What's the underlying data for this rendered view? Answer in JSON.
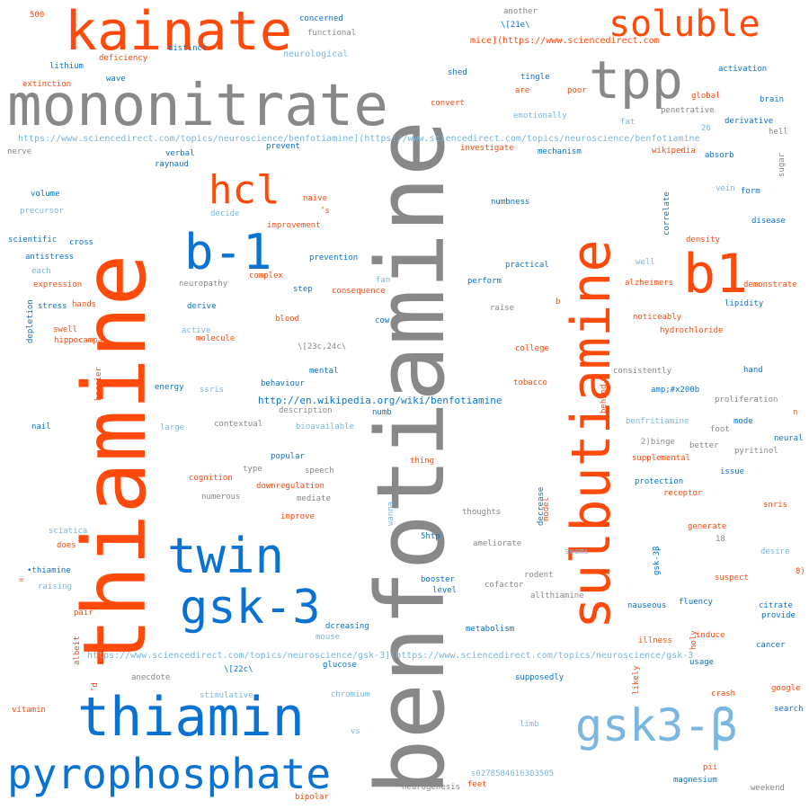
{
  "palette": {
    "orange": "#ff4a0c",
    "gray": "#888888",
    "blue": "#0a72d2",
    "lightblue": "#7ab6e0"
  },
  "words": [
    {
      "text": "benfotiamine",
      "color": "gray"
    },
    {
      "text": "thiamine",
      "color": "orange"
    },
    {
      "text": "mononitrate",
      "color": "gray"
    },
    {
      "text": "sulbutiamine",
      "color": "orange"
    },
    {
      "text": "kainate",
      "color": "orange"
    },
    {
      "text": "thiamin",
      "color": "blue"
    },
    {
      "text": "pyrophosphate",
      "color": "blue"
    },
    {
      "text": "gsk3-β",
      "color": "lightblue"
    },
    {
      "text": "gsk-3",
      "color": "blue"
    },
    {
      "text": "twin",
      "color": "blue"
    },
    {
      "text": "tpp",
      "color": "gray"
    },
    {
      "text": "soluble",
      "color": "orange"
    },
    {
      "text": "b-1",
      "color": "blue"
    },
    {
      "text": "b1",
      "color": "orange"
    },
    {
      "text": "hcl",
      "color": "orange"
    },
    {
      "text": "https://www.sciencedirect.com/topics/neuroscience/benfotiamine](https://www.sciencedirect.com/topics/neuroscience/benfotiamine",
      "color": "lightblue"
    },
    {
      "text": "https://www.sciencedirect.com/topics/neuroscience/gsk-3](https://www.sciencedirect.com/topics/neuroscience/gsk-3",
      "color": "lightblue"
    },
    {
      "text": "http://en.wikipedia.org/wiki/benfotiamine",
      "color": "blue"
    },
    {
      "text": "mice](https://www.sciencedirect.com",
      "color": "orange"
    },
    {
      "text": "500",
      "color": "orange"
    },
    {
      "text": "concerned",
      "color": "blue"
    },
    {
      "text": "functional",
      "color": "gray"
    },
    {
      "text": "distinct",
      "color": "blue"
    },
    {
      "text": "deficiency",
      "color": "orange"
    },
    {
      "text": "neurological",
      "color": "lightblue"
    },
    {
      "text": "lithium",
      "color": "blue"
    },
    {
      "text": "extinction",
      "color": "orange"
    },
    {
      "text": "wave",
      "color": "blue"
    },
    {
      "text": "nerve",
      "color": "gray"
    },
    {
      "text": "verbal",
      "color": "blue"
    },
    {
      "text": "raynaud",
      "color": "blue"
    },
    {
      "text": "prevent",
      "color": "blue"
    },
    {
      "text": "volume",
      "color": "blue"
    },
    {
      "text": "precursor",
      "color": "lightblue"
    },
    {
      "text": "scientific",
      "color": "blue"
    },
    {
      "text": "cross",
      "color": "blue"
    },
    {
      "text": "antistress",
      "color": "blue"
    },
    {
      "text": "each",
      "color": "lightblue"
    },
    {
      "text": "expression",
      "color": "orange"
    },
    {
      "text": "stress",
      "color": "blue"
    },
    {
      "text": "hands",
      "color": "orange"
    },
    {
      "text": "depletion",
      "color": "blue",
      "rot": true
    },
    {
      "text": "swell",
      "color": "orange"
    },
    {
      "text": "hippocampal",
      "color": "orange"
    },
    {
      "text": "barrier",
      "color": "orange",
      "rot": true
    },
    {
      "text": "energy",
      "color": "blue"
    },
    {
      "text": "ssris",
      "color": "lightblue"
    },
    {
      "text": "nail",
      "color": "blue"
    },
    {
      "text": "large",
      "color": "lightblue"
    },
    {
      "text": "another",
      "color": "gray"
    },
    {
      "text": "\\[21e\\",
      "color": "blue"
    },
    {
      "text": "shed",
      "color": "blue"
    },
    {
      "text": "tingle",
      "color": "blue"
    },
    {
      "text": "are",
      "color": "orange"
    },
    {
      "text": "poor",
      "color": "orange"
    },
    {
      "text": "convert",
      "color": "orange"
    },
    {
      "text": "emotionally",
      "color": "lightblue"
    },
    {
      "text": "fat",
      "color": "lightblue"
    },
    {
      "text": "investigate",
      "color": "orange"
    },
    {
      "text": "mechanism",
      "color": "blue"
    },
    {
      "text": "activation",
      "color": "blue"
    },
    {
      "text": "brain",
      "color": "blue"
    },
    {
      "text": "global",
      "color": "orange"
    },
    {
      "text": "penetrative",
      "color": "gray"
    },
    {
      "text": "derivative",
      "color": "blue"
    },
    {
      "text": "26",
      "color": "lightblue"
    },
    {
      "text": "hell",
      "color": "gray"
    },
    {
      "text": "wikipedia",
      "color": "orange"
    },
    {
      "text": "absorb",
      "color": "blue"
    },
    {
      "text": "sugar",
      "color": "gray",
      "rot": true
    },
    {
      "text": "vein",
      "color": "lightblue"
    },
    {
      "text": "form",
      "color": "blue"
    },
    {
      "text": "correlate",
      "color": "blue",
      "rot": true
    },
    {
      "text": "disease",
      "color": "blue"
    },
    {
      "text": "numbness",
      "color": "blue"
    },
    {
      "text": "density",
      "color": "orange"
    },
    {
      "text": "naive",
      "color": "orange"
    },
    {
      "text": "’s",
      "color": "orange"
    },
    {
      "text": "decide",
      "color": "lightblue"
    },
    {
      "text": "improvement",
      "color": "orange"
    },
    {
      "text": "prevention",
      "color": "blue"
    },
    {
      "text": "practical",
      "color": "blue"
    },
    {
      "text": "well",
      "color": "lightblue"
    },
    {
      "text": "complex",
      "color": "orange"
    },
    {
      "text": "neuropathy",
      "color": "gray"
    },
    {
      "text": "fan",
      "color": "lightblue"
    },
    {
      "text": "perform",
      "color": "blue"
    },
    {
      "text": "alzheimers",
      "color": "orange"
    },
    {
      "text": "demonstrate",
      "color": "orange"
    },
    {
      "text": "step",
      "color": "blue"
    },
    {
      "text": "consequence",
      "color": "orange"
    },
    {
      "text": "lipidity",
      "color": "blue"
    },
    {
      "text": "derive",
      "color": "blue"
    },
    {
      "text": "raise",
      "color": "gray"
    },
    {
      "text": "b",
      "color": "orange"
    },
    {
      "text": "cow",
      "color": "blue"
    },
    {
      "text": "blood",
      "color": "orange"
    },
    {
      "text": "noticeably",
      "color": "orange"
    },
    {
      "text": "active",
      "color": "lightblue"
    },
    {
      "text": "molecule",
      "color": "orange"
    },
    {
      "text": "hydrochloride",
      "color": "orange"
    },
    {
      "text": "\\[23c,24c\\",
      "color": "gray"
    },
    {
      "text": "college",
      "color": "orange"
    },
    {
      "text": "mental",
      "color": "blue"
    },
    {
      "text": "consistently",
      "color": "gray"
    },
    {
      "text": "hand",
      "color": "blue"
    },
    {
      "text": "behaviour",
      "color": "blue"
    },
    {
      "text": "tobacco",
      "color": "orange"
    },
    {
      "text": "behind",
      "color": "orange",
      "rot": true
    },
    {
      "text": "amp;#x200b",
      "color": "blue"
    },
    {
      "text": "proliferation",
      "color": "gray"
    },
    {
      "text": "description",
      "color": "gray"
    },
    {
      "text": "numb",
      "color": "blue"
    },
    {
      "text": "n",
      "color": "orange"
    },
    {
      "text": "benfritiamine",
      "color": "lightblue"
    },
    {
      "text": "mode",
      "color": "blue"
    },
    {
      "text": "contextual",
      "color": "gray"
    },
    {
      "text": "bioavailable",
      "color": "lightblue"
    },
    {
      "text": "foot",
      "color": "gray"
    },
    {
      "text": "neural",
      "color": "blue"
    },
    {
      "text": "2)binge",
      "color": "gray"
    },
    {
      "text": "better",
      "color": "gray"
    },
    {
      "text": "pyritinol",
      "color": "gray"
    },
    {
      "text": "popular",
      "color": "blue"
    },
    {
      "text": "thing",
      "color": "orange"
    },
    {
      "text": "supplemental",
      "color": "orange"
    },
    {
      "text": "type",
      "color": "gray"
    },
    {
      "text": "speech",
      "color": "gray"
    },
    {
      "text": "issue",
      "color": "blue"
    },
    {
      "text": "cognition",
      "color": "orange"
    },
    {
      "text": "protection",
      "color": "blue"
    },
    {
      "text": "downregulation",
      "color": "orange"
    },
    {
      "text": "decrease",
      "color": "blue",
      "rot": true
    },
    {
      "text": "model",
      "color": "orange",
      "rot": true
    },
    {
      "text": "receptor",
      "color": "orange"
    },
    {
      "text": "numerous",
      "color": "gray"
    },
    {
      "text": "mediate",
      "color": "gray"
    },
    {
      "text": "snris",
      "color": "orange"
    },
    {
      "text": "wanna",
      "color": "lightblue",
      "rot": true
    },
    {
      "text": "improve",
      "color": "orange"
    },
    {
      "text": "thoughts",
      "color": "gray"
    },
    {
      "text": "generate",
      "color": "orange"
    },
    {
      "text": "sciatica",
      "color": "lightblue"
    },
    {
      "text": "18",
      "color": "gray"
    },
    {
      "text": "does",
      "color": "orange"
    },
    {
      "text": "5htp",
      "color": "blue"
    },
    {
      "text": "ameliorate",
      "color": "gray"
    },
    {
      "text": "seems",
      "color": "lightblue"
    },
    {
      "text": "desire",
      "color": "lightblue"
    },
    {
      "text": "gsk-3β",
      "color": "blue",
      "rot": true
    },
    {
      "text": "•thiamine",
      "color": "blue"
    },
    {
      "text": "=",
      "color": "orange"
    },
    {
      "text": "raising",
      "color": "lightblue"
    },
    {
      "text": "rodent",
      "color": "gray"
    },
    {
      "text": "8)",
      "color": "orange"
    },
    {
      "text": "cofactor",
      "color": "gray"
    },
    {
      "text": "booster",
      "color": "blue"
    },
    {
      "text": "suspect",
      "color": "orange"
    },
    {
      "text": "level",
      "color": "blue"
    },
    {
      "text": "allthiamine",
      "color": "gray"
    },
    {
      "text": "fluency",
      "color": "blue"
    },
    {
      "text": "citrate",
      "color": "blue"
    },
    {
      "text": "nauseous",
      "color": "blue"
    },
    {
      "text": "provide",
      "color": "blue"
    },
    {
      "text": "pair",
      "color": "orange"
    },
    {
      "text": "dcreasing",
      "color": "blue"
    },
    {
      "text": "metabolism",
      "color": "blue"
    },
    {
      "text": "induce",
      "color": "orange"
    },
    {
      "text": "holy",
      "color": "orange",
      "rot": true
    },
    {
      "text": "illness",
      "color": "orange"
    },
    {
      "text": "cancer",
      "color": "blue"
    },
    {
      "text": "mouse",
      "color": "lightblue"
    },
    {
      "text": "albeit",
      "color": "orange",
      "rot": true
    },
    {
      "text": "usage",
      "color": "blue"
    },
    {
      "text": "\\[22c\\",
      "color": "blue"
    },
    {
      "text": "glucose",
      "color": "blue"
    },
    {
      "text": "likely",
      "color": "orange",
      "rot": true
    },
    {
      "text": "anecdote",
      "color": "gray"
    },
    {
      "text": "supposedly",
      "color": "blue"
    },
    {
      "text": "’d",
      "color": "orange",
      "rot": true
    },
    {
      "text": "google",
      "color": "orange"
    },
    {
      "text": "stimulative",
      "color": "lightblue"
    },
    {
      "text": "chromium",
      "color": "lightblue"
    },
    {
      "text": "crash",
      "color": "orange"
    },
    {
      "text": "search",
      "color": "blue"
    },
    {
      "text": "vitamin",
      "color": "orange"
    },
    {
      "text": "limb",
      "color": "lightblue"
    },
    {
      "text": "vs",
      "color": "lightblue"
    },
    {
      "text": "s0278584616303505",
      "color": "lightblue"
    },
    {
      "text": "pii",
      "color": "orange"
    },
    {
      "text": "magnesium",
      "color": "blue"
    },
    {
      "text": "feet",
      "color": "orange"
    },
    {
      "text": "neurogenesis",
      "color": "gray"
    },
    {
      "text": "weekend",
      "color": "gray"
    },
    {
      "text": "bipolar",
      "color": "orange"
    }
  ]
}
